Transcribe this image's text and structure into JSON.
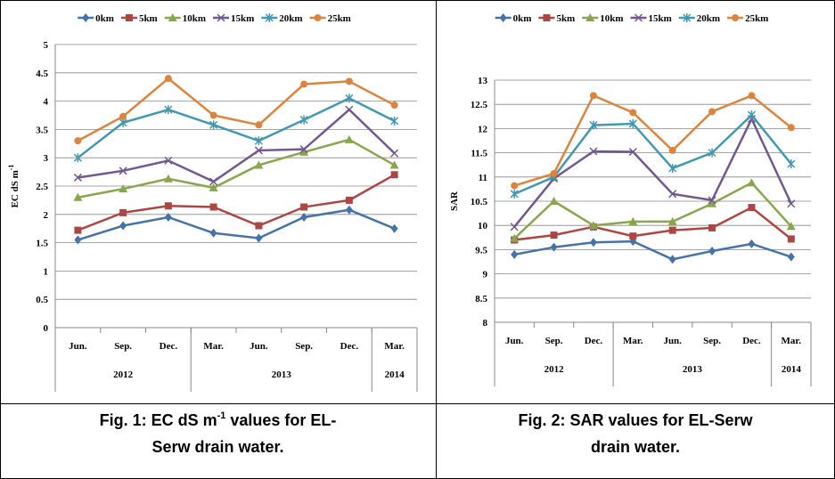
{
  "chart_data": [
    {
      "type": "line",
      "ylabel": "EC dS m",
      "ylabel_sup": "-1",
      "categories": [
        "Jun.",
        "Sep.",
        "Dec.",
        "Mar.",
        "Jun.",
        "Sep.",
        "Dec.",
        "Mar."
      ],
      "x_groups": [
        {
          "label": "2012",
          "categories": 3
        },
        {
          "label": "2013",
          "categories": 4
        },
        {
          "label": "2014",
          "categories": 1
        }
      ],
      "ylim": [
        0,
        5
      ],
      "yticks": [
        0,
        0.5,
        1,
        1.5,
        2,
        2.5,
        3,
        3.5,
        4,
        4.5,
        5
      ],
      "grid": true,
      "legend": "top",
      "series": [
        {
          "name": "0km",
          "color": "#4572a7",
          "marker": "diamond",
          "values": [
            1.55,
            1.8,
            1.95,
            1.67,
            1.58,
            1.95,
            2.08,
            1.75
          ]
        },
        {
          "name": "5km",
          "color": "#aa4643",
          "marker": "square",
          "values": [
            1.72,
            2.03,
            2.15,
            2.13,
            1.8,
            2.13,
            2.25,
            2.7
          ]
        },
        {
          "name": "10km",
          "color": "#89a54e",
          "marker": "triangle",
          "values": [
            2.3,
            2.45,
            2.63,
            2.47,
            2.87,
            3.1,
            3.32,
            2.87
          ]
        },
        {
          "name": "15km",
          "color": "#71588f",
          "marker": "x",
          "values": [
            2.65,
            2.77,
            2.95,
            2.58,
            3.13,
            3.15,
            3.85,
            3.08
          ]
        },
        {
          "name": "20km",
          "color": "#4198af",
          "marker": "star",
          "values": [
            3.0,
            3.62,
            3.85,
            3.58,
            3.3,
            3.67,
            4.05,
            3.65
          ]
        },
        {
          "name": "25km",
          "color": "#db843d",
          "marker": "circle",
          "values": [
            3.3,
            3.73,
            4.4,
            3.75,
            3.58,
            4.3,
            4.35,
            3.93
          ]
        }
      ],
      "caption": [
        {
          "text": "Fig. 1: EC dS m",
          "sup": "-1",
          "after": " values for EL-"
        },
        {
          "text": "Serw drain water."
        }
      ]
    },
    {
      "type": "line",
      "ylabel": "SAR",
      "categories": [
        "Jun.",
        "Sep.",
        "Dec.",
        "Mar.",
        "Jun.",
        "Sep.",
        "Dec.",
        "Mar."
      ],
      "x_groups": [
        {
          "label": "2012",
          "categories": 3
        },
        {
          "label": "2013",
          "categories": 4
        },
        {
          "label": "2014",
          "categories": 1
        }
      ],
      "ylim": [
        8,
        13
      ],
      "yticks": [
        8,
        8.5,
        9,
        9.5,
        10,
        10.5,
        11,
        11.5,
        12,
        12.5,
        13
      ],
      "grid": true,
      "legend": "top",
      "series": [
        {
          "name": "0km",
          "color": "#4572a7",
          "marker": "diamond",
          "values": [
            9.4,
            9.55,
            9.65,
            9.67,
            9.3,
            9.47,
            9.62,
            9.35
          ]
        },
        {
          "name": "5km",
          "color": "#aa4643",
          "marker": "square",
          "values": [
            9.7,
            9.8,
            9.97,
            9.78,
            9.9,
            9.95,
            10.37,
            9.72
          ]
        },
        {
          "name": "10km",
          "color": "#89a54e",
          "marker": "triangle",
          "values": [
            9.73,
            10.5,
            10.0,
            10.08,
            10.08,
            10.45,
            10.88,
            9.98
          ]
        },
        {
          "name": "15km",
          "color": "#71588f",
          "marker": "x",
          "values": [
            9.97,
            10.97,
            11.53,
            11.52,
            10.65,
            10.52,
            12.2,
            10.45
          ]
        },
        {
          "name": "20km",
          "color": "#4198af",
          "marker": "star",
          "values": [
            10.65,
            11.0,
            12.07,
            12.1,
            11.18,
            11.5,
            12.28,
            11.27
          ]
        },
        {
          "name": "25km",
          "color": "#db843d",
          "marker": "circle",
          "values": [
            10.82,
            11.07,
            12.68,
            12.33,
            11.55,
            12.35,
            12.68,
            12.02
          ]
        }
      ],
      "caption": [
        {
          "text": "Fig. 2: SAR values for EL-Serw"
        },
        {
          "text": "drain water."
        }
      ]
    }
  ]
}
